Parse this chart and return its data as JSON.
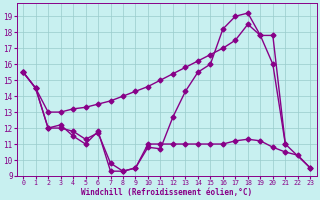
{
  "background_color": "#c8f0f0",
  "line_color": "#880088",
  "marker": "D",
  "markersize": 2.5,
  "linewidth": 1.0,
  "xlim": [
    -0.5,
    23.5
  ],
  "ylim": [
    9,
    19.8
  ],
  "yticks": [
    9,
    10,
    11,
    12,
    13,
    14,
    15,
    16,
    17,
    18,
    19
  ],
  "xticks": [
    0,
    1,
    2,
    3,
    4,
    5,
    6,
    7,
    8,
    9,
    10,
    11,
    12,
    13,
    14,
    15,
    16,
    17,
    18,
    19,
    20,
    21,
    22,
    23
  ],
  "xlabel": "Windchill (Refroidissement éolien,°C)",
  "grid_color": "#99cccc",
  "series": [
    {
      "x": [
        0,
        1,
        2,
        3,
        4,
        5,
        6,
        7,
        8,
        9,
        10,
        11,
        12,
        13,
        14,
        15,
        16,
        17,
        18,
        19,
        20,
        21,
        23
      ],
      "y": [
        15.5,
        14.5,
        13.0,
        13.0,
        13.2,
        13.3,
        13.5,
        13.7,
        14.0,
        14.3,
        14.6,
        15.0,
        15.4,
        15.8,
        16.2,
        16.6,
        17.0,
        17.5,
        18.5,
        17.8,
        17.8,
        11.0,
        9.5
      ]
    },
    {
      "x": [
        0,
        1,
        2,
        3,
        4,
        5,
        6,
        7,
        8,
        9,
        10,
        11,
        12,
        13,
        14,
        15,
        16,
        17,
        18,
        19,
        20,
        21
      ],
      "y": [
        15.5,
        14.5,
        12.0,
        12.0,
        11.8,
        11.3,
        11.7,
        9.8,
        9.3,
        9.5,
        10.8,
        10.7,
        12.7,
        14.3,
        15.5,
        16.0,
        18.2,
        19.0,
        19.2,
        17.8,
        16.0,
        11.0
      ]
    },
    {
      "x": [
        0,
        1,
        2,
        3,
        4,
        5,
        6,
        7,
        8,
        9,
        10,
        11,
        12,
        13,
        14,
        15,
        16,
        17,
        18,
        19,
        20,
        21,
        22,
        23
      ],
      "y": [
        15.5,
        14.5,
        12.0,
        12.2,
        11.5,
        11.0,
        11.8,
        9.3,
        9.3,
        9.5,
        11.0,
        11.0,
        11.0,
        11.0,
        11.0,
        11.0,
        11.0,
        11.2,
        11.3,
        11.2,
        10.8,
        10.5,
        10.3,
        9.5
      ]
    }
  ]
}
